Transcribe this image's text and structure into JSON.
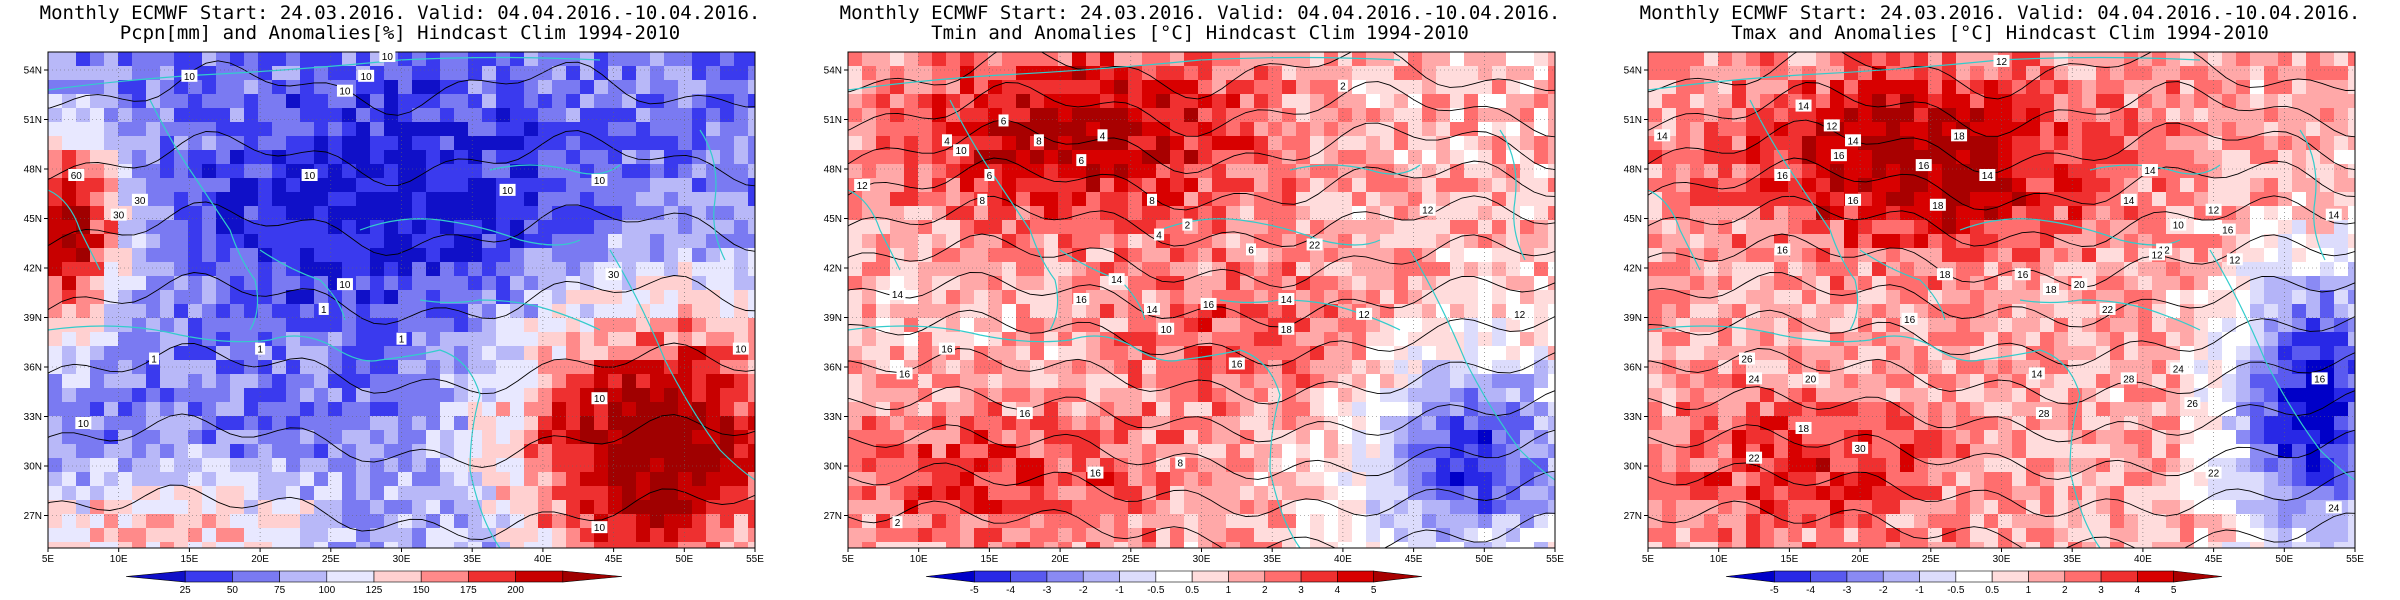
{
  "map_axes": {
    "lon_labels": [
      "5E",
      "10E",
      "15E",
      "20E",
      "25E",
      "30E",
      "35E",
      "40E",
      "45E",
      "50E",
      "55E"
    ],
    "lat_labels": [
      "54N",
      "51N",
      "48N",
      "45N",
      "42N",
      "39N",
      "36N",
      "33N",
      "30N",
      "27N"
    ]
  },
  "panels": [
    {
      "title_line1": "Monthly ECMWF Start: 24.03.2016. Valid: 04.04.2016.-10.04.2016.",
      "title_line2": "Pcpn[mm] and Anomalies[%] Hindcast Clim 1994-2010",
      "colorbar_labels": [
        "25",
        "50",
        "75",
        "100",
        "125",
        "150",
        "175",
        "200"
      ],
      "colorbar_colors": [
        "#1010c8",
        "#3a3aee",
        "#7a7af2",
        "#b8b8f8",
        "#e8e8ff",
        "#ffd0d0",
        "#ff8a8a",
        "#ee3030",
        "#c80000",
        "#a00000"
      ],
      "contour_labels": [
        "10",
        "10",
        "10",
        "10",
        "10",
        "10",
        "10",
        "10",
        "30",
        "60",
        "30",
        "10",
        "1",
        "1",
        "1",
        "1",
        "10",
        "30",
        "10",
        "10"
      ],
      "palette": "precip"
    },
    {
      "title_line1": "Monthly ECMWF Start: 24.03.2016. Valid: 04.04.2016.-10.04.2016.",
      "title_line2": "Tmin and Anomalies [°C] Hindcast Clim 1994-2010",
      "colorbar_labels": [
        "-5",
        "-4",
        "-3",
        "-2",
        "-1",
        "-0.5",
        "0.5",
        "1",
        "2",
        "3",
        "4",
        "5"
      ],
      "colorbar_colors": [
        "#0000c8",
        "#2828e6",
        "#5a5af0",
        "#8a8af4",
        "#b4b4f8",
        "#dcdcfc",
        "#ffffff",
        "#ffdcdc",
        "#ffa8a8",
        "#ff6e6e",
        "#f03030",
        "#d80000",
        "#a80000"
      ],
      "contour_labels": [
        "2",
        "6",
        "8",
        "4",
        "6",
        "12",
        "10",
        "6",
        "8",
        "4",
        "8",
        "4",
        "2",
        "6",
        "14",
        "16",
        "16",
        "14",
        "14",
        "10",
        "16",
        "16",
        "14",
        "18",
        "16",
        "22",
        "12",
        "12",
        "2",
        "16",
        "12",
        "16",
        "8"
      ],
      "palette": "temp"
    },
    {
      "title_line1": "Monthly ECMWF Start: 24.03.2016. Valid: 04.04.2016.-10.04.2016.",
      "title_line2": "Tmax and Anomalies [°C] Hindcast Clim 1994-2010",
      "colorbar_labels": [
        "-5",
        "-4",
        "-3",
        "-2",
        "-1",
        "-0.5",
        "0.5",
        "1",
        "2",
        "3",
        "4",
        "5"
      ],
      "colorbar_colors": [
        "#0000c8",
        "#2828e6",
        "#5a5af0",
        "#8a8af4",
        "#b4b4f8",
        "#dcdcfc",
        "#ffffff",
        "#ffdcdc",
        "#ffa8a8",
        "#ff6e6e",
        "#f03030",
        "#d80000",
        "#a80000"
      ],
      "contour_labels": [
        "12",
        "14",
        "14",
        "12",
        "16",
        "16",
        "14",
        "16",
        "18",
        "14",
        "16",
        "18",
        "16",
        "14",
        "12",
        "16",
        "10",
        "12",
        "14",
        "18",
        "16",
        "18",
        "20",
        "22",
        "26",
        "24",
        "20",
        "18",
        "22",
        "28",
        "30",
        "28",
        "24",
        "26",
        "22",
        "14",
        "12",
        "12",
        "16",
        "24",
        "16",
        "14"
      ],
      "palette": "temp"
    }
  ]
}
